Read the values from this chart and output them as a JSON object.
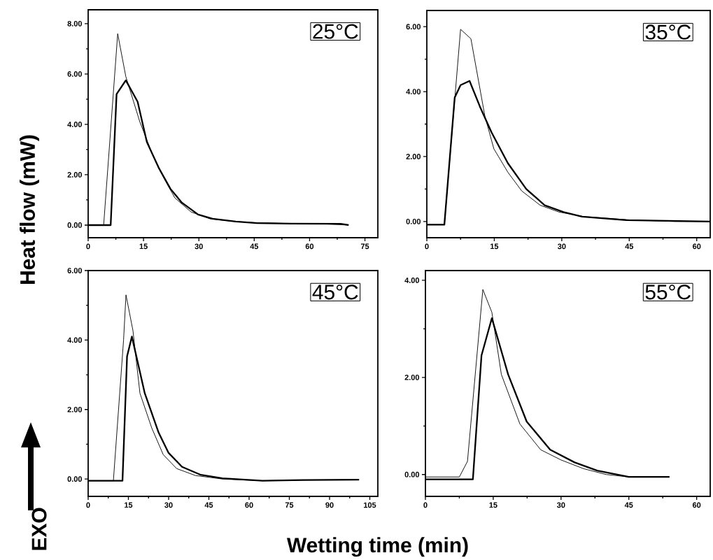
{
  "chart_data": [
    {
      "type": "line",
      "xlim": [
        0,
        78.5
      ],
      "ylim": [
        -0.5,
        8.55
      ],
      "xticks": [
        0,
        {
          "value": 7.5,
          "label": null
        },
        15,
        {
          "value": 22.5,
          "label": null
        },
        30,
        {
          "value": 37.5,
          "label": null
        },
        45,
        {
          "value": 52.5,
          "label": null
        },
        60,
        {
          "value": 67.5,
          "label": null
        },
        75
      ],
      "yticks": [
        {
          "value": 0,
          "label": "0.00"
        },
        {
          "value": 1,
          "label": null
        },
        {
          "value": 2,
          "label": "2.00"
        },
        {
          "value": 3,
          "label": null
        },
        {
          "value": 4,
          "label": "4.00"
        },
        {
          "value": 5,
          "label": null
        },
        {
          "value": 6,
          "label": "6.00"
        },
        {
          "value": 7,
          "label": null
        },
        {
          "value": 8,
          "label": "8.00"
        }
      ],
      "annotations": [
        "25°C"
      ],
      "series": [
        {
          "color": "#000000",
          "x": [
            0,
            4.2,
            8.0,
            10.2,
            14,
            17.2,
            20.4,
            23.5,
            27.9,
            33,
            40,
            45,
            55,
            65,
            70.5
          ],
          "values": [
            0,
            0,
            7.6,
            5.9,
            4.1,
            2.9,
            1.9,
            1.08,
            0.52,
            0.25,
            0.14,
            0.1,
            0.06,
            0.04,
            0.0
          ]
        },
        {
          "color": "#000000",
          "x": [
            0,
            6.1,
            7.7,
            10.2,
            13.4,
            15.9,
            19.1,
            22.3,
            25.4,
            29.8,
            33.7,
            40,
            45.7,
            55,
            68.4,
            70.6
          ],
          "values": [
            0,
            0,
            5.2,
            5.75,
            4.9,
            3.3,
            2.28,
            1.44,
            0.89,
            0.42,
            0.25,
            0.14,
            0.08,
            0.06,
            0.05,
            0.0
          ]
        }
      ]
    },
    {
      "type": "line",
      "xlim": [
        0,
        63
      ],
      "ylim": [
        -0.5,
        6.5
      ],
      "xticks": [
        0,
        {
          "value": 7.5,
          "label": null
        },
        15,
        {
          "value": 22.5,
          "label": null
        },
        30,
        {
          "value": 37.5,
          "label": null
        },
        45,
        {
          "value": 52.5,
          "label": null
        },
        60
      ],
      "yticks": [
        {
          "value": 0,
          "label": "0.00"
        },
        {
          "value": 1,
          "label": null
        },
        {
          "value": 2,
          "label": "2.00"
        },
        {
          "value": 3,
          "label": null
        },
        {
          "value": 4,
          "label": "4.00"
        },
        {
          "value": 5,
          "label": null
        },
        {
          "value": 6,
          "label": "6.00"
        }
      ],
      "annotations": [
        "35°C"
      ],
      "series": [
        {
          "color": "#000000",
          "x": [
            0,
            3.9,
            7.5,
            9.8,
            12.9,
            14.9,
            18,
            21.1,
            25.2,
            29.4,
            35,
            45,
            55,
            63
          ],
          "values": [
            -0.1,
            -0.1,
            5.92,
            5.63,
            3.25,
            2.24,
            1.52,
            0.94,
            0.5,
            0.29,
            0.15,
            0.05,
            0.0,
            0.0
          ]
        },
        {
          "color": "#000000",
          "x": [
            0,
            3.9,
            6.2,
            7.5,
            9.5,
            11.8,
            14.4,
            18,
            22.1,
            26.2,
            30.4,
            34.5,
            44.3,
            63
          ],
          "values": [
            -0.1,
            -0.1,
            3.82,
            4.2,
            4.33,
            3.54,
            2.74,
            1.8,
            1.0,
            0.5,
            0.29,
            0.15,
            0.04,
            0.0
          ]
        }
      ]
    },
    {
      "type": "line",
      "xlim": [
        0,
        108
      ],
      "ylim": [
        -0.5,
        6.0
      ],
      "xlabel": "Wetting time (min)",
      "ylabel": "Heat flow (mW)",
      "xticks": [
        0,
        {
          "value": 7.5,
          "label": null
        },
        15,
        {
          "value": 22.5,
          "label": null
        },
        30,
        {
          "value": 37.5,
          "label": null
        },
        45,
        {
          "value": 52.5,
          "label": null
        },
        60,
        {
          "value": 67.5,
          "label": null
        },
        75,
        {
          "value": 82.5,
          "label": null
        },
        90,
        {
          "value": 97.5,
          "label": null
        },
        105
      ],
      "yticks": [
        {
          "value": 0,
          "label": "0.00"
        },
        {
          "value": 1,
          "label": null
        },
        {
          "value": 2,
          "label": "2.00"
        },
        {
          "value": 3,
          "label": null
        },
        {
          "value": 4,
          "label": "4.00"
        },
        {
          "value": 5,
          "label": null
        },
        {
          "value": 6,
          "label": "6.00"
        }
      ],
      "annotations": [
        "45°C",
        "EXO"
      ],
      "series": [
        {
          "color": "#000000",
          "x": [
            0,
            9.4,
            13.2,
            14.1,
            16.7,
            19.3,
            23.7,
            28,
            33,
            40,
            50,
            65,
            80,
            101
          ],
          "values": [
            -0.05,
            -0.05,
            4.0,
            5.3,
            4.27,
            2.47,
            1.47,
            0.7,
            0.3,
            0.1,
            0.0,
            -0.05,
            -0.03,
            -0.02
          ]
        },
        {
          "color": "#000000",
          "x": [
            0,
            12.8,
            14.5,
            16.3,
            21.1,
            26.3,
            30,
            35,
            42,
            50,
            65,
            80,
            101
          ],
          "values": [
            -0.05,
            -0.05,
            3.53,
            4.1,
            2.47,
            1.33,
            0.75,
            0.35,
            0.12,
            0.02,
            -0.05,
            -0.03,
            -0.02
          ]
        }
      ]
    },
    {
      "type": "line",
      "xlim": [
        0,
        63
      ],
      "ylim": [
        -0.45,
        4.2
      ],
      "xticks": [
        0,
        {
          "value": 7.5,
          "label": null
        },
        15,
        {
          "value": 22.5,
          "label": null
        },
        30,
        {
          "value": 37.5,
          "label": null
        },
        45,
        {
          "value": 52.5,
          "label": null
        },
        60
      ],
      "yticks": [
        {
          "value": 0,
          "label": "0.00"
        },
        {
          "value": 1,
          "label": null
        },
        {
          "value": 2,
          "label": "2.00"
        },
        {
          "value": 3,
          "label": null
        },
        {
          "value": 4,
          "label": "4.00"
        }
      ],
      "annotations": [
        "55°C"
      ],
      "series": [
        {
          "color": "#000000",
          "x": [
            0,
            7.5,
            9.3,
            12.7,
            14.7,
            16.8,
            20.9,
            25.5,
            30,
            35,
            40,
            45
          ],
          "values": [
            -0.05,
            -0.05,
            0.27,
            3.81,
            3.34,
            2.06,
            1.04,
            0.51,
            0.3,
            0.12,
            0.0,
            -0.05
          ]
        },
        {
          "color": "#000000",
          "x": [
            0,
            10.5,
            12.4,
            14.7,
            18.3,
            22.4,
            27.6,
            33,
            38,
            45,
            54
          ],
          "values": [
            -0.1,
            -0.1,
            2.45,
            3.22,
            2.06,
            1.09,
            0.51,
            0.25,
            0.08,
            -0.05,
            -0.05
          ]
        }
      ]
    }
  ]
}
